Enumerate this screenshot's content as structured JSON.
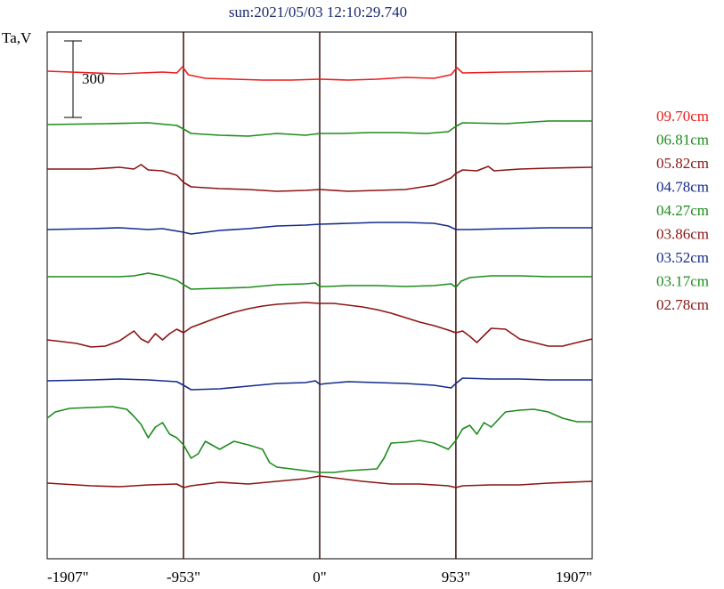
{
  "chart_data": {
    "type": "line",
    "title": "sun:2021/05/03 12:10:29.740",
    "ylabel": "Ta,V",
    "scale_bar_label": "300",
    "scale_bar_value": 300,
    "x_ticks": [
      {
        "value": -1907,
        "label": "-1907\""
      },
      {
        "value": -953,
        "label": "-953\""
      },
      {
        "value": 0,
        "label": "0\""
      },
      {
        "value": 953,
        "label": "953\""
      },
      {
        "value": 1907,
        "label": "1907\""
      }
    ],
    "xlim": [
      -1907,
      1907
    ],
    "vertical_lines": [
      -953,
      0,
      953
    ],
    "grid": false,
    "legend_position": "right",
    "series": [
      {
        "name": "09.70cm",
        "color": "#ee1c1c",
        "points": [
          [
            -1907,
            80
          ],
          [
            -1400,
            83
          ],
          [
            -1100,
            81
          ],
          [
            -1000,
            82
          ],
          [
            -960,
            75
          ],
          [
            -920,
            84
          ],
          [
            -800,
            88
          ],
          [
            -600,
            89
          ],
          [
            -400,
            90
          ],
          [
            -200,
            90
          ],
          [
            0,
            89
          ],
          [
            200,
            90
          ],
          [
            400,
            89
          ],
          [
            600,
            87
          ],
          [
            800,
            88
          ],
          [
            920,
            84
          ],
          [
            960,
            76
          ],
          [
            1000,
            82
          ],
          [
            1300,
            81
          ],
          [
            1907,
            80
          ]
        ]
      },
      {
        "name": "06.81cm",
        "color": "#1c8c1c",
        "points": [
          [
            -1907,
            140
          ],
          [
            -1500,
            139
          ],
          [
            -1200,
            138
          ],
          [
            -1000,
            141
          ],
          [
            -953,
            145
          ],
          [
            -900,
            150
          ],
          [
            -700,
            152
          ],
          [
            -500,
            153
          ],
          [
            -300,
            150
          ],
          [
            -100,
            152
          ],
          [
            0,
            150
          ],
          [
            150,
            150
          ],
          [
            350,
            149
          ],
          [
            550,
            149
          ],
          [
            750,
            150
          ],
          [
            900,
            148
          ],
          [
            953,
            142
          ],
          [
            1000,
            138
          ],
          [
            1300,
            139
          ],
          [
            1600,
            136
          ],
          [
            1907,
            136
          ]
        ]
      },
      {
        "name": "05.82cm",
        "color": "#8c1414",
        "points": [
          [
            -1907,
            190
          ],
          [
            -1600,
            190
          ],
          [
            -1400,
            188
          ],
          [
            -1300,
            190
          ],
          [
            -1250,
            185
          ],
          [
            -1200,
            191
          ],
          [
            -1100,
            192
          ],
          [
            -1000,
            197
          ],
          [
            -953,
            205
          ],
          [
            -900,
            210
          ],
          [
            -700,
            212
          ],
          [
            -500,
            213
          ],
          [
            -300,
            215
          ],
          [
            -100,
            214
          ],
          [
            0,
            213
          ],
          [
            200,
            215
          ],
          [
            400,
            214
          ],
          [
            600,
            213
          ],
          [
            800,
            208
          ],
          [
            920,
            200
          ],
          [
            953,
            195
          ],
          [
            1000,
            191
          ],
          [
            1100,
            192
          ],
          [
            1180,
            187
          ],
          [
            1220,
            192
          ],
          [
            1400,
            190
          ],
          [
            1600,
            189
          ],
          [
            1907,
            188
          ]
        ]
      },
      {
        "name": "04.78cm",
        "color": "#142b8c",
        "points": [
          [
            -1907,
            258
          ],
          [
            -1600,
            257
          ],
          [
            -1400,
            256
          ],
          [
            -1200,
            258
          ],
          [
            -1100,
            257
          ],
          [
            -953,
            261
          ],
          [
            -900,
            263
          ],
          [
            -700,
            259
          ],
          [
            -500,
            257
          ],
          [
            -300,
            254
          ],
          [
            -100,
            253
          ],
          [
            0,
            252
          ],
          [
            200,
            251
          ],
          [
            400,
            250
          ],
          [
            600,
            250
          ],
          [
            800,
            251
          ],
          [
            900,
            254
          ],
          [
            953,
            258
          ],
          [
            1050,
            258
          ],
          [
            1300,
            257
          ],
          [
            1600,
            256
          ],
          [
            1907,
            256
          ]
        ]
      },
      {
        "name": "04.27cm",
        "color": "#1c8c1c",
        "points": [
          [
            -1907,
            311
          ],
          [
            -1600,
            311
          ],
          [
            -1400,
            311
          ],
          [
            -1300,
            310
          ],
          [
            -1200,
            307
          ],
          [
            -1100,
            310
          ],
          [
            -1000,
            315
          ],
          [
            -953,
            320
          ],
          [
            -900,
            325
          ],
          [
            -700,
            324
          ],
          [
            -500,
            323
          ],
          [
            -300,
            320
          ],
          [
            -100,
            319
          ],
          [
            -30,
            318
          ],
          [
            0,
            322
          ],
          [
            50,
            322
          ],
          [
            200,
            321
          ],
          [
            400,
            321
          ],
          [
            600,
            322
          ],
          [
            800,
            321
          ],
          [
            920,
            319
          ],
          [
            953,
            323
          ],
          [
            990,
            316
          ],
          [
            1050,
            312
          ],
          [
            1200,
            310
          ],
          [
            1400,
            310
          ],
          [
            1600,
            311
          ],
          [
            1907,
            311
          ]
        ]
      },
      {
        "name": "03.86cm",
        "color": "#8c1414",
        "points": [
          [
            -1907,
            382
          ],
          [
            -1800,
            384
          ],
          [
            -1700,
            386
          ],
          [
            -1600,
            390
          ],
          [
            -1500,
            389
          ],
          [
            -1400,
            383
          ],
          [
            -1300,
            372
          ],
          [
            -1250,
            381
          ],
          [
            -1200,
            385
          ],
          [
            -1150,
            375
          ],
          [
            -1100,
            382
          ],
          [
            -1050,
            375
          ],
          [
            -1000,
            370
          ],
          [
            -953,
            374
          ],
          [
            -900,
            368
          ],
          [
            -800,
            362
          ],
          [
            -700,
            356
          ],
          [
            -600,
            351
          ],
          [
            -500,
            347
          ],
          [
            -400,
            344
          ],
          [
            -300,
            342
          ],
          [
            -200,
            341
          ],
          [
            -100,
            340
          ],
          [
            0,
            341
          ],
          [
            100,
            341
          ],
          [
            200,
            343
          ],
          [
            300,
            345
          ],
          [
            400,
            348
          ],
          [
            500,
            352
          ],
          [
            600,
            357
          ],
          [
            700,
            362
          ],
          [
            800,
            366
          ],
          [
            900,
            371
          ],
          [
            953,
            374
          ],
          [
            1000,
            372
          ],
          [
            1050,
            378
          ],
          [
            1100,
            385
          ],
          [
            1150,
            377
          ],
          [
            1200,
            369
          ],
          [
            1300,
            370
          ],
          [
            1400,
            381
          ],
          [
            1500,
            385
          ],
          [
            1600,
            389
          ],
          [
            1700,
            389
          ],
          [
            1800,
            385
          ],
          [
            1907,
            381
          ]
        ]
      },
      {
        "name": "03.52cm",
        "color": "#142b8c",
        "points": [
          [
            -1907,
            428
          ],
          [
            -1600,
            427
          ],
          [
            -1400,
            426
          ],
          [
            -1200,
            427
          ],
          [
            -1000,
            429
          ],
          [
            -953,
            433
          ],
          [
            -900,
            438
          ],
          [
            -700,
            437
          ],
          [
            -500,
            434
          ],
          [
            -300,
            431
          ],
          [
            -100,
            430
          ],
          [
            -30,
            428
          ],
          [
            0,
            432
          ],
          [
            50,
            431
          ],
          [
            200,
            429
          ],
          [
            400,
            430
          ],
          [
            600,
            431
          ],
          [
            800,
            433
          ],
          [
            920,
            436
          ],
          [
            953,
            431
          ],
          [
            1000,
            425
          ],
          [
            1200,
            426
          ],
          [
            1400,
            426
          ],
          [
            1600,
            427
          ],
          [
            1907,
            427
          ]
        ]
      },
      {
        "name": "03.17cm",
        "color": "#1c8c1c",
        "points": [
          [
            -1907,
            470
          ],
          [
            -1850,
            463
          ],
          [
            -1750,
            459
          ],
          [
            -1600,
            458
          ],
          [
            -1450,
            457
          ],
          [
            -1350,
            460
          ],
          [
            -1300,
            468
          ],
          [
            -1250,
            477
          ],
          [
            -1200,
            492
          ],
          [
            -1150,
            480
          ],
          [
            -1100,
            475
          ],
          [
            -1050,
            488
          ],
          [
            -1000,
            492
          ],
          [
            -953,
            500
          ],
          [
            -900,
            515
          ],
          [
            -850,
            510
          ],
          [
            -800,
            496
          ],
          [
            -700,
            505
          ],
          [
            -600,
            496
          ],
          [
            -500,
            500
          ],
          [
            -400,
            505
          ],
          [
            -350,
            520
          ],
          [
            -300,
            525
          ],
          [
            -200,
            527
          ],
          [
            -100,
            529
          ],
          [
            0,
            531
          ],
          [
            100,
            531
          ],
          [
            200,
            529
          ],
          [
            300,
            528
          ],
          [
            400,
            527
          ],
          [
            450,
            515
          ],
          [
            500,
            498
          ],
          [
            600,
            497
          ],
          [
            700,
            495
          ],
          [
            800,
            498
          ],
          [
            900,
            505
          ],
          [
            953,
            495
          ],
          [
            1000,
            482
          ],
          [
            1050,
            478
          ],
          [
            1100,
            488
          ],
          [
            1150,
            475
          ],
          [
            1200,
            480
          ],
          [
            1300,
            463
          ],
          [
            1400,
            461
          ],
          [
            1500,
            460
          ],
          [
            1600,
            463
          ],
          [
            1700,
            470
          ],
          [
            1800,
            474
          ],
          [
            1907,
            474
          ]
        ]
      },
      {
        "name": "02.78cm",
        "color": "#8c1414",
        "points": [
          [
            -1907,
            543
          ],
          [
            -1600,
            546
          ],
          [
            -1400,
            547
          ],
          [
            -1200,
            545
          ],
          [
            -1000,
            544
          ],
          [
            -953,
            548
          ],
          [
            -900,
            546
          ],
          [
            -700,
            542
          ],
          [
            -500,
            544
          ],
          [
            -300,
            541
          ],
          [
            -100,
            538
          ],
          [
            0,
            535
          ],
          [
            100,
            537
          ],
          [
            300,
            541
          ],
          [
            500,
            544
          ],
          [
            700,
            544
          ],
          [
            800,
            545
          ],
          [
            900,
            546
          ],
          [
            953,
            548
          ],
          [
            1000,
            546
          ],
          [
            1200,
            545
          ],
          [
            1400,
            545
          ],
          [
            1600,
            543
          ],
          [
            1907,
            541
          ]
        ]
      }
    ]
  }
}
